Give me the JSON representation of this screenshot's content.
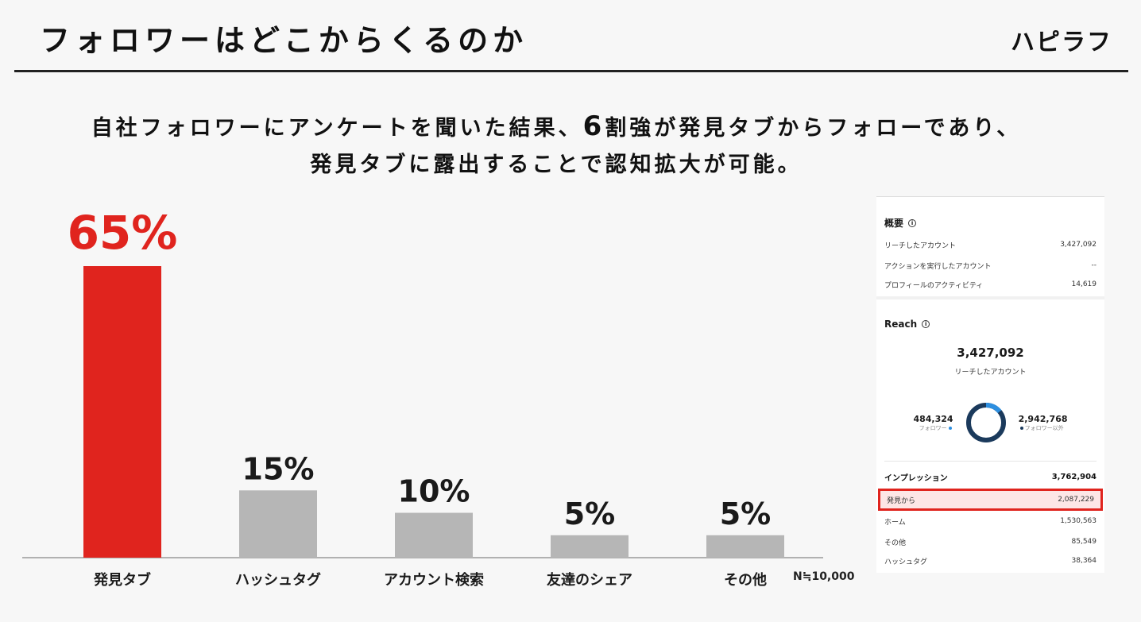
{
  "header": {
    "title": "フォロワーはどこからくるのか",
    "logo": "ハピラフ"
  },
  "headline": {
    "line1_pre": "自社フォロワーにアンケートを聞いた結果、",
    "line1_num": "6",
    "line1_post": "割強が発見タブからフォローであり、",
    "line2": "発見タブに露出することで認知拡大が可能。"
  },
  "chart_data": {
    "type": "bar",
    "categories": [
      "発見タブ",
      "ハッシュタグ",
      "アカウント検索",
      "友達のシェア",
      "その他"
    ],
    "values": [
      65,
      15,
      10,
      5,
      5
    ],
    "data_labels": [
      "65%",
      "15%",
      "10%",
      "5%",
      "5%"
    ],
    "highlight_index": 0,
    "colors": {
      "highlight": "#e0241e",
      "default": "#b6b6b6",
      "highlight_label": "#e0241e",
      "default_label": "#1a1a1a"
    },
    "ylim": [
      0,
      65
    ],
    "grid": false,
    "note": "N≒10,000"
  },
  "insights": {
    "overview": {
      "title": "概要",
      "rows": [
        {
          "label": "リーチしたアカウント",
          "value": "3,427,092"
        },
        {
          "label": "アクションを実行したアカウント",
          "value": "--"
        },
        {
          "label": "プロフィールのアクティビティ",
          "value": "14,619"
        }
      ]
    },
    "reach": {
      "title": "Reach",
      "total": "3,427,092",
      "total_label": "リーチしたアカウント",
      "followers_value": "484,324",
      "followers_label": "フォロワー",
      "non_followers_value": "2,942,768",
      "non_followers_label": "フォロワー以外",
      "followers_fraction": 0.141,
      "colors": {
        "followers": "#2d8fe0",
        "non_followers": "#1b3a5c"
      }
    },
    "impressions": {
      "label": "インプレッション",
      "value": "3,762,904",
      "rows": [
        {
          "label": "発見から",
          "value": "2,087,229",
          "highlight": true
        },
        {
          "label": "ホーム",
          "value": "1,530,563"
        },
        {
          "label": "その他",
          "value": "85,549"
        },
        {
          "label": "ハッシュタグ",
          "value": "38,364"
        }
      ]
    }
  }
}
